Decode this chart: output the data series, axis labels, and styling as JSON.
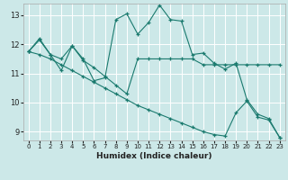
{
  "xlabel": "Humidex (Indice chaleur)",
  "background_color": "#cce8e8",
  "grid_color": "#ffffff",
  "line_color": "#1a7a6e",
  "xlim": [
    -0.5,
    23.5
  ],
  "ylim": [
    8.7,
    13.4
  ],
  "yticks": [
    9,
    10,
    11,
    12,
    13
  ],
  "xticks": [
    0,
    1,
    2,
    3,
    4,
    5,
    6,
    7,
    8,
    9,
    10,
    11,
    12,
    13,
    14,
    15,
    16,
    17,
    18,
    19,
    20,
    21,
    22,
    23
  ],
  "series1_x": [
    0,
    1,
    2,
    3,
    4,
    5,
    6,
    7,
    8,
    9,
    10,
    11,
    12,
    13,
    14,
    15,
    16,
    17,
    18,
    19,
    20,
    21,
    22,
    23
  ],
  "series1_y": [
    11.75,
    12.2,
    11.65,
    11.1,
    11.95,
    11.5,
    10.75,
    10.85,
    12.85,
    13.05,
    12.35,
    12.75,
    13.35,
    12.85,
    12.8,
    11.65,
    11.7,
    11.35,
    11.15,
    11.35,
    10.1,
    9.6,
    9.45,
    8.8
  ],
  "series2_x": [
    0,
    1,
    2,
    3,
    4,
    5,
    6,
    7,
    8,
    9,
    10,
    11,
    12,
    13,
    14,
    15,
    16,
    17,
    18,
    19,
    20,
    21,
    22,
    23
  ],
  "series2_y": [
    11.75,
    12.15,
    11.65,
    11.5,
    11.95,
    11.45,
    11.2,
    10.9,
    10.6,
    10.3,
    11.5,
    11.5,
    11.5,
    11.5,
    11.5,
    11.5,
    11.3,
    11.3,
    11.3,
    11.3,
    11.3,
    11.3,
    11.3,
    11.3
  ],
  "series3_x": [
    0,
    1,
    2,
    3,
    4,
    5,
    6,
    7,
    8,
    9,
    10,
    11,
    12,
    13,
    14,
    15,
    16,
    17,
    18,
    19,
    20,
    21,
    22,
    23
  ],
  "series3_y": [
    11.75,
    11.65,
    11.5,
    11.3,
    11.1,
    10.9,
    10.7,
    10.5,
    10.3,
    10.1,
    9.9,
    9.75,
    9.6,
    9.45,
    9.3,
    9.15,
    9.0,
    8.9,
    8.85,
    9.65,
    10.05,
    9.5,
    9.4,
    8.8
  ]
}
